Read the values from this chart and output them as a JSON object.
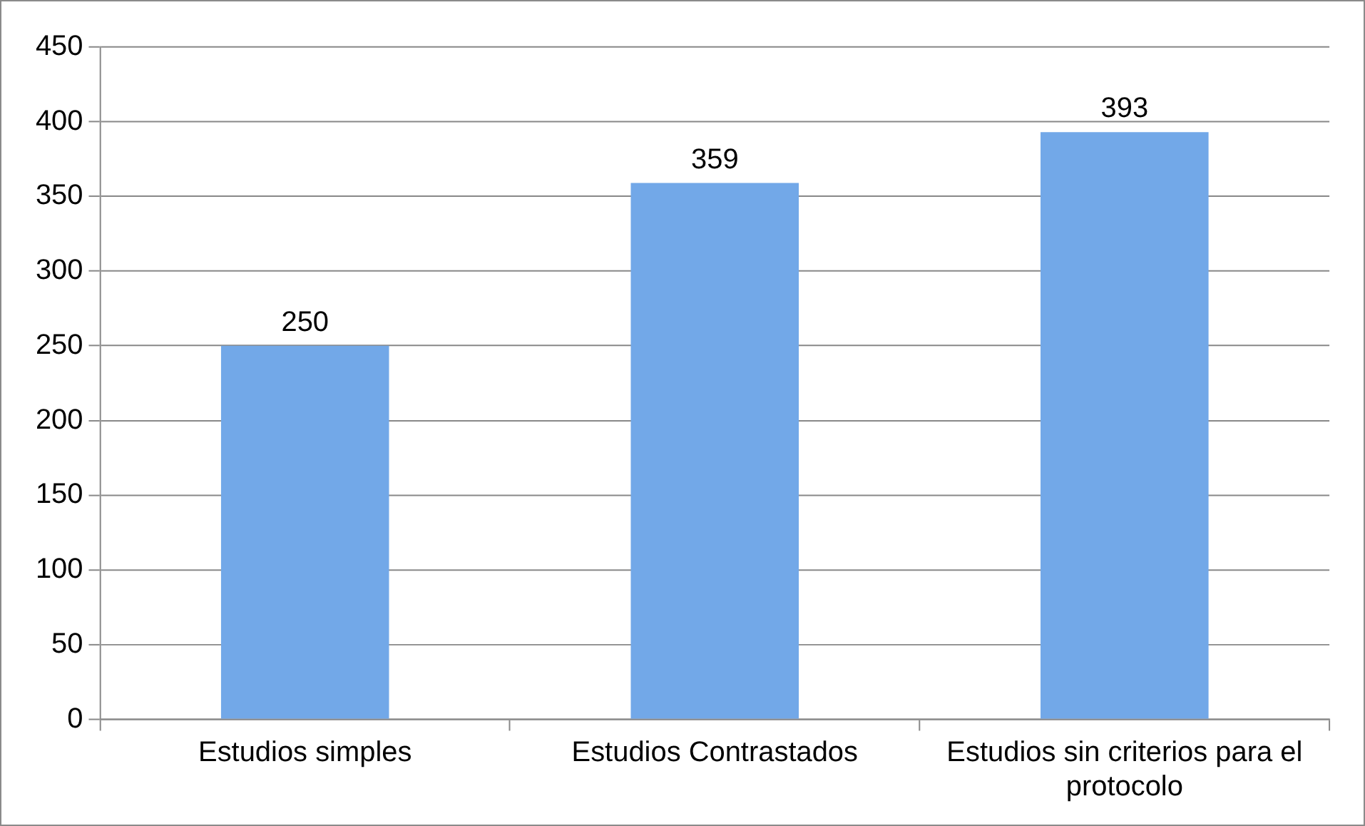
{
  "chart_data": {
    "type": "bar",
    "categories": [
      "Estudios simples",
      "Estudios Contrastados",
      "Estudios sin criterios para el protocolo"
    ],
    "values": [
      250,
      359,
      393
    ],
    "color": "#72a8e8",
    "ylim": [
      0,
      450
    ],
    "yticks": [
      0,
      50,
      100,
      150,
      200,
      250,
      300,
      350,
      400,
      450
    ],
    "grid": "y",
    "legend": false,
    "data_labels": true
  }
}
